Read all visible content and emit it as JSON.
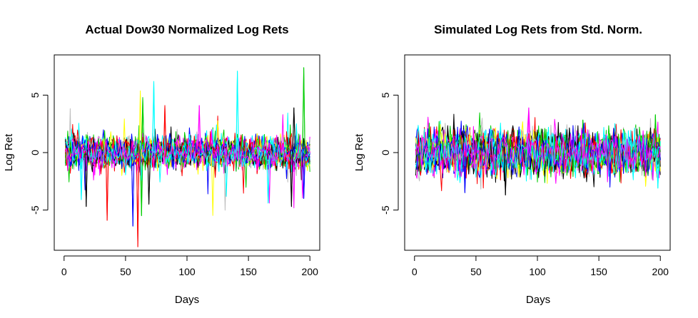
{
  "chart_data": [
    {
      "type": "line",
      "title": "Actual Dow30 Normalized Log Rets",
      "xlabel": "Days",
      "ylabel": "Log Ret",
      "xlim": [
        -8,
        208
      ],
      "ylim": [
        -8.5,
        8.5
      ],
      "xticks": [
        "0",
        "50",
        "100",
        "150",
        "200"
      ],
      "yticks": [
        "-5",
        "0",
        "5"
      ],
      "grid": false,
      "legend": "none",
      "n_series": 30,
      "n_days": 200,
      "series_colors": [
        "#000000",
        "#ff0000",
        "#00cd00",
        "#0000ff",
        "#00ffff",
        "#ff00ff",
        "#ffff00",
        "#bebebe"
      ],
      "spikes": [
        {
          "day": 195,
          "value": 7.4,
          "color": "#00cd00"
        },
        {
          "day": 141,
          "value": 7.1,
          "color": "#00ffff"
        },
        {
          "day": 73,
          "value": 6.2,
          "color": "#00ffff"
        },
        {
          "day": 62,
          "value": 5.4,
          "color": "#ffff00"
        },
        {
          "day": 64,
          "value": 4.8,
          "color": "#00cd00"
        },
        {
          "day": 82,
          "value": 4.1,
          "color": "#ff0000"
        },
        {
          "day": 110,
          "value": 4.1,
          "color": "#ff00ff"
        },
        {
          "day": 187,
          "value": 3.9,
          "color": "#000000"
        },
        {
          "day": 60,
          "value": -8.2,
          "color": "#ff0000"
        },
        {
          "day": 56,
          "value": -6.4,
          "color": "#0000ff"
        },
        {
          "day": 35,
          "value": -5.9,
          "color": "#ff0000"
        },
        {
          "day": 121,
          "value": -5.5,
          "color": "#ffff00"
        },
        {
          "day": 63,
          "value": -5.5,
          "color": "#00cd00"
        },
        {
          "day": 18,
          "value": -4.7,
          "color": "#000000"
        },
        {
          "day": 185,
          "value": -4.7,
          "color": "#000000"
        },
        {
          "day": 69,
          "value": -4.5,
          "color": "#000000"
        },
        {
          "day": 166,
          "value": -4.4,
          "color": "#00ffff"
        },
        {
          "day": 14,
          "value": -4.1,
          "color": "#00ffff"
        },
        {
          "day": 195,
          "value": -4.0,
          "color": "#0000ff"
        }
      ]
    },
    {
      "type": "line",
      "title": "Simulated Log Rets from Std. Norm.",
      "xlabel": "Days",
      "ylabel": "Log Ret",
      "xlim": [
        -8,
        208
      ],
      "ylim": [
        -8.5,
        8.5
      ],
      "xticks": [
        "0",
        "50",
        "100",
        "150",
        "200"
      ],
      "yticks": [
        "-5",
        "0",
        "5"
      ],
      "grid": false,
      "legend": "none",
      "n_series": 30,
      "n_days": 200,
      "distribution": "standard normal",
      "series_colors": [
        "#000000",
        "#ff0000",
        "#00cd00",
        "#0000ff",
        "#00ffff",
        "#ff00ff",
        "#ffff00",
        "#bebebe"
      ],
      "spikes": [
        {
          "day": 93,
          "value": 3.9,
          "color": "#ff00ff"
        },
        {
          "day": 196,
          "value": 3.3,
          "color": "#00cd00"
        },
        {
          "day": 74,
          "value": -3.7,
          "color": "#000000"
        },
        {
          "day": 41,
          "value": -3.5,
          "color": "#0000ff"
        },
        {
          "day": 198,
          "value": -3.1,
          "color": "#00ffff"
        }
      ]
    }
  ]
}
